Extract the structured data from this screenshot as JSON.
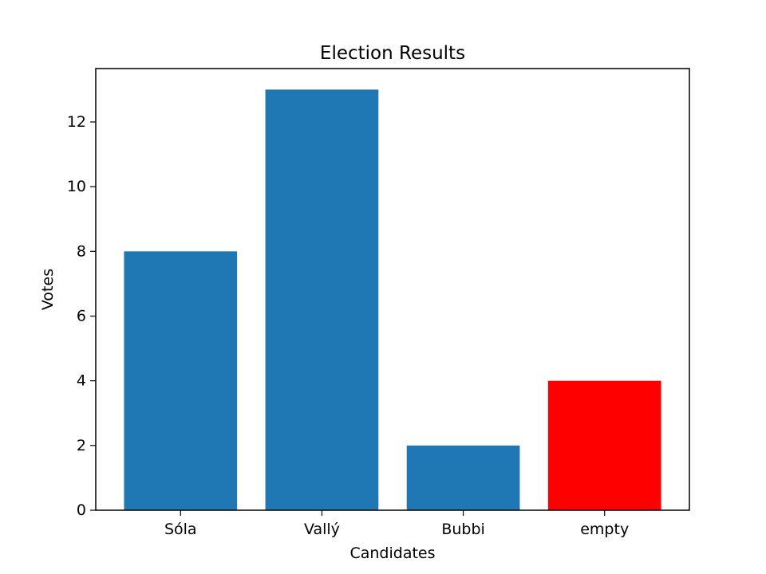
{
  "chart_data": {
    "type": "bar",
    "title": "Election Results",
    "xlabel": "Candidates",
    "ylabel": "Votes",
    "categories": [
      "Sóla",
      "Vallý",
      "Bubbi",
      "empty"
    ],
    "values": [
      8,
      13,
      2,
      4
    ],
    "bar_colors": [
      "#1f77b4",
      "#1f77b4",
      "#1f77b4",
      "#ff0000"
    ],
    "ylim": [
      0,
      13.65
    ],
    "yticks": [
      0,
      2,
      4,
      6,
      8,
      10,
      12
    ],
    "grid": false,
    "legend": "none"
  }
}
